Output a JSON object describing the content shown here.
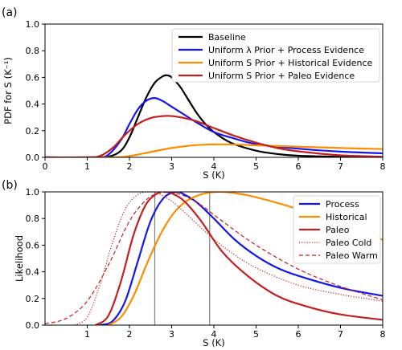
{
  "chart_data": [
    {
      "type": "line",
      "panel_label": "(a)",
      "xlabel": "S (K)",
      "ylabel": "PDF for S (K⁻¹)",
      "xlim": [
        0,
        8
      ],
      "ylim": [
        0,
        1.0
      ],
      "xticks": [
        "0",
        "1",
        "2",
        "3",
        "4",
        "5",
        "6",
        "7",
        "8"
      ],
      "yticks": [
        "0.0",
        "0.2",
        "0.4",
        "0.6",
        "0.8",
        "1.0"
      ],
      "grid": false,
      "legend_position": "top-right",
      "series": [
        {
          "name": "Baseline",
          "color": "#000000",
          "style": "solid",
          "x": [
            0,
            1.0,
            1.5,
            1.8,
            2.0,
            2.2,
            2.4,
            2.6,
            2.8,
            2.9,
            3.0,
            3.2,
            3.4,
            3.6,
            3.8,
            4.0,
            4.4,
            5.0,
            5.5,
            6.0,
            7.0,
            8.0
          ],
          "y": [
            0,
            0,
            0.005,
            0.05,
            0.15,
            0.3,
            0.45,
            0.56,
            0.61,
            0.615,
            0.6,
            0.53,
            0.43,
            0.33,
            0.25,
            0.19,
            0.11,
            0.05,
            0.025,
            0.012,
            0.004,
            0.001
          ]
        },
        {
          "name": "Uniform λ Prior + Process Evidence",
          "color": "#1515ee",
          "style": "solid",
          "x": [
            0,
            1.2,
            1.5,
            1.8,
            2.0,
            2.2,
            2.4,
            2.6,
            2.8,
            3.0,
            3.3,
            3.6,
            4.0,
            4.5,
            5.0,
            6.0,
            7.0,
            8.0
          ],
          "y": [
            0,
            0,
            0.02,
            0.13,
            0.25,
            0.36,
            0.425,
            0.445,
            0.42,
            0.38,
            0.32,
            0.26,
            0.19,
            0.14,
            0.1,
            0.065,
            0.043,
            0.03
          ]
        },
        {
          "name": "Uniform S Prior + Historical Evidence",
          "color": "#ff8c00",
          "style": "solid",
          "x": [
            0,
            1.6,
            2.0,
            2.5,
            3.0,
            3.5,
            4.0,
            4.5,
            5.0,
            6.0,
            7.0,
            8.0
          ],
          "y": [
            0,
            0,
            0.01,
            0.04,
            0.07,
            0.09,
            0.097,
            0.096,
            0.09,
            0.08,
            0.07,
            0.062
          ]
        },
        {
          "name": "Uniform S Prior + Paleo Evidence",
          "color": "#c41e1e",
          "style": "solid",
          "x": [
            0,
            1.0,
            1.3,
            1.6,
            1.9,
            2.2,
            2.5,
            2.8,
            3.0,
            3.3,
            3.6,
            4.0,
            4.5,
            5.0,
            5.5,
            6.0,
            7.0,
            8.0
          ],
          "y": [
            0,
            0,
            0.01,
            0.07,
            0.17,
            0.25,
            0.295,
            0.31,
            0.31,
            0.295,
            0.27,
            0.22,
            0.16,
            0.11,
            0.07,
            0.045,
            0.015,
            0.005
          ]
        }
      ]
    },
    {
      "type": "line",
      "panel_label": "(b)",
      "xlabel": "S (K)",
      "ylabel": "Likelihood",
      "xlim": [
        0,
        8
      ],
      "ylim": [
        0,
        1.0
      ],
      "xticks": [
        "1",
        "2",
        "3",
        "4",
        "5",
        "6",
        "7",
        "8"
      ],
      "yticks": [
        "0.0",
        "0.2",
        "0.4",
        "0.6",
        "0.8",
        "1.0"
      ],
      "grid": false,
      "legend_position": "top-right",
      "vlines": [
        2.6,
        3.9
      ],
      "series": [
        {
          "name": "Process",
          "color": "#1515ee",
          "style": "solid",
          "x": [
            1.3,
            1.6,
            1.9,
            2.2,
            2.5,
            2.8,
            3.1,
            3.3,
            3.6,
            4.0,
            4.5,
            5.0,
            5.5,
            6.0,
            7.0,
            8.0
          ],
          "y": [
            0,
            0.03,
            0.18,
            0.48,
            0.78,
            0.95,
            1.0,
            0.98,
            0.92,
            0.8,
            0.64,
            0.52,
            0.43,
            0.37,
            0.28,
            0.22
          ]
        },
        {
          "name": "Historical",
          "color": "#ff8c00",
          "style": "solid",
          "x": [
            1.5,
            1.8,
            2.1,
            2.4,
            2.7,
            3.0,
            3.3,
            3.6,
            3.9,
            4.2,
            4.5,
            5.0,
            6.0,
            7.0,
            8.0
          ],
          "y": [
            0,
            0.06,
            0.22,
            0.45,
            0.66,
            0.82,
            0.92,
            0.97,
            0.995,
            1.0,
            0.99,
            0.96,
            0.87,
            0.76,
            0.64
          ]
        },
        {
          "name": "Paleo",
          "color": "#c41e1e",
          "style": "solid",
          "x": [
            1.2,
            1.5,
            1.8,
            2.1,
            2.4,
            2.7,
            2.85,
            3.0,
            3.3,
            3.7,
            4.2,
            4.8,
            5.5,
            6.2,
            7.0,
            8.0
          ],
          "y": [
            0,
            0.07,
            0.33,
            0.68,
            0.91,
            0.995,
            1.0,
            0.99,
            0.93,
            0.78,
            0.55,
            0.37,
            0.22,
            0.14,
            0.08,
            0.04
          ]
        },
        {
          "name": "Paleo Cold",
          "color": "#c41e1e",
          "style": "dotted",
          "x": [
            0.7,
            1.0,
            1.3,
            1.6,
            1.9,
            2.2,
            2.5,
            2.7,
            3.0,
            3.4,
            3.8,
            4.3,
            5.0,
            6.0,
            7.0,
            8.0
          ],
          "y": [
            0,
            0.06,
            0.3,
            0.62,
            0.87,
            0.98,
            1.0,
            0.985,
            0.93,
            0.82,
            0.7,
            0.57,
            0.43,
            0.3,
            0.23,
            0.18
          ]
        },
        {
          "name": "Paleo Warm",
          "color": "#c41e1e",
          "style": "dashed",
          "x": [
            0,
            0.5,
            1.0,
            1.5,
            2.0,
            2.4,
            2.7,
            3.0,
            3.3,
            3.7,
            4.2,
            5.0,
            6.0,
            7.0,
            8.0
          ],
          "y": [
            0.01,
            0.05,
            0.18,
            0.45,
            0.78,
            0.94,
            0.99,
            0.995,
            0.97,
            0.9,
            0.78,
            0.6,
            0.42,
            0.29,
            0.19
          ]
        }
      ]
    }
  ]
}
